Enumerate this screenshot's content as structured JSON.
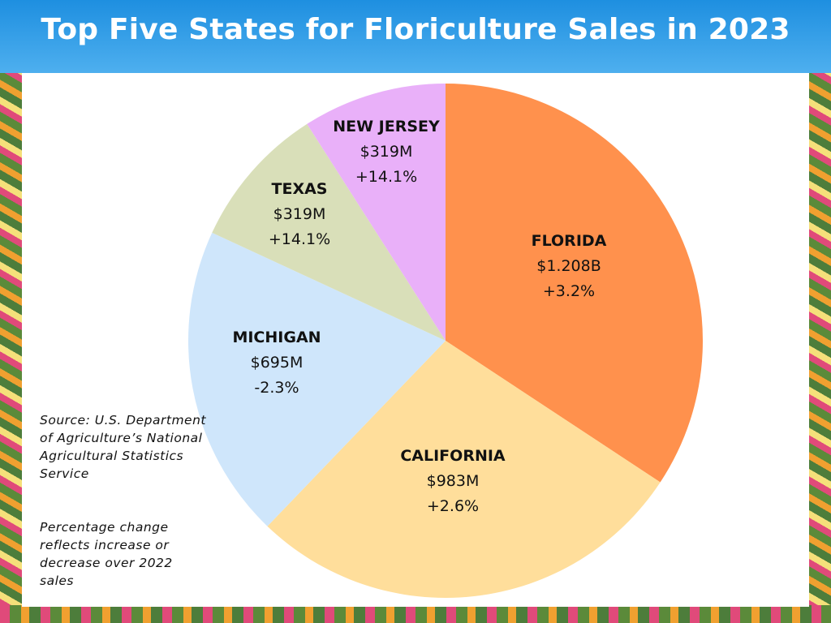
{
  "title": "Top Five States for Floriculture Sales in 2023",
  "chart_data": {
    "type": "pie",
    "title": "Top Five States for Floriculture Sales in 2023",
    "unit": "USD millions",
    "slices": [
      {
        "name": "FLORIDA",
        "value": 1208,
        "value_label": "$1.208B",
        "change": "+3.2%",
        "color": "#FF914D"
      },
      {
        "name": "CALIFORNIA",
        "value": 983,
        "value_label": "$983M",
        "change": "+2.6%",
        "color": "#FFDE9B"
      },
      {
        "name": "MICHIGAN",
        "value": 695,
        "value_label": "$695M",
        "change": "-2.3%",
        "color": "#CFE6FB"
      },
      {
        "name": "TEXAS",
        "value": 319,
        "value_label": "$319M",
        "change": "+14.1%",
        "color": "#D9DFB9"
      },
      {
        "name": "NEW JERSEY",
        "value": 319,
        "value_label": "$319M",
        "change": "+14.1%",
        "color": "#E9B0F9"
      }
    ]
  },
  "notes": {
    "source": "Source: U.S. Department of Agriculture’s National Agricultural Statistics Service",
    "change_note": "Percentage change reflects increase or decrease over 2022 sales"
  }
}
